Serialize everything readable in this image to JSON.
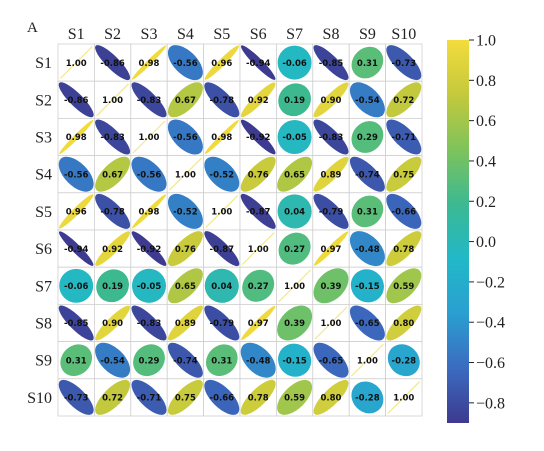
{
  "panel_label": "A",
  "chart_data": {
    "type": "heatmap",
    "subtype": "ellipse-correlation-matrix",
    "variables": [
      "S1",
      "S2",
      "S3",
      "S4",
      "S5",
      "S6",
      "S7",
      "S8",
      "S9",
      "S10"
    ],
    "matrix": [
      [
        1.0,
        -0.86,
        0.98,
        -0.56,
        0.96,
        -0.94,
        -0.06,
        -0.85,
        0.31,
        -0.73
      ],
      [
        -0.86,
        1.0,
        -0.83,
        0.67,
        -0.78,
        0.92,
        0.19,
        0.9,
        -0.54,
        0.72
      ],
      [
        0.98,
        -0.83,
        1.0,
        -0.56,
        0.98,
        -0.92,
        -0.05,
        -0.83,
        0.29,
        -0.71
      ],
      [
        -0.56,
        0.67,
        -0.56,
        1.0,
        -0.52,
        0.76,
        0.65,
        0.89,
        -0.74,
        0.75
      ],
      [
        0.96,
        -0.78,
        0.98,
        -0.52,
        1.0,
        -0.87,
        0.04,
        -0.79,
        0.31,
        -0.66
      ],
      [
        -0.94,
        0.92,
        -0.92,
        0.76,
        -0.87,
        1.0,
        0.27,
        0.97,
        -0.48,
        0.78
      ],
      [
        -0.06,
        0.19,
        -0.05,
        0.65,
        0.04,
        0.27,
        1.0,
        0.39,
        -0.15,
        0.59
      ],
      [
        -0.85,
        0.9,
        -0.83,
        0.89,
        -0.79,
        0.97,
        0.39,
        1.0,
        -0.65,
        0.8
      ],
      [
        0.31,
        -0.54,
        0.29,
        -0.74,
        0.31,
        -0.48,
        -0.15,
        -0.65,
        1.0,
        -0.28
      ],
      [
        -0.73,
        0.72,
        -0.71,
        0.75,
        -0.66,
        0.78,
        0.59,
        0.8,
        -0.28,
        1.0
      ]
    ],
    "colorbar": {
      "range": [
        -0.9,
        1.0
      ],
      "ticks": [
        1.0,
        0.8,
        0.6,
        0.4,
        0.2,
        0.0,
        -0.2,
        -0.4,
        -0.6,
        -0.8
      ],
      "tick_labels": [
        "1.0",
        "0.8",
        "0.6",
        "0.4",
        "0.2",
        "0.0",
        "−0.2",
        "−0.4",
        "−0.6",
        "−0.8"
      ],
      "colormap": "viridis-like",
      "stops": [
        "#3d3a8f",
        "#3b6bc0",
        "#2a9fd0",
        "#22b8c8",
        "#3cb991",
        "#7ec35b",
        "#c4c93c",
        "#f3dc3d"
      ]
    },
    "grid": true
  }
}
